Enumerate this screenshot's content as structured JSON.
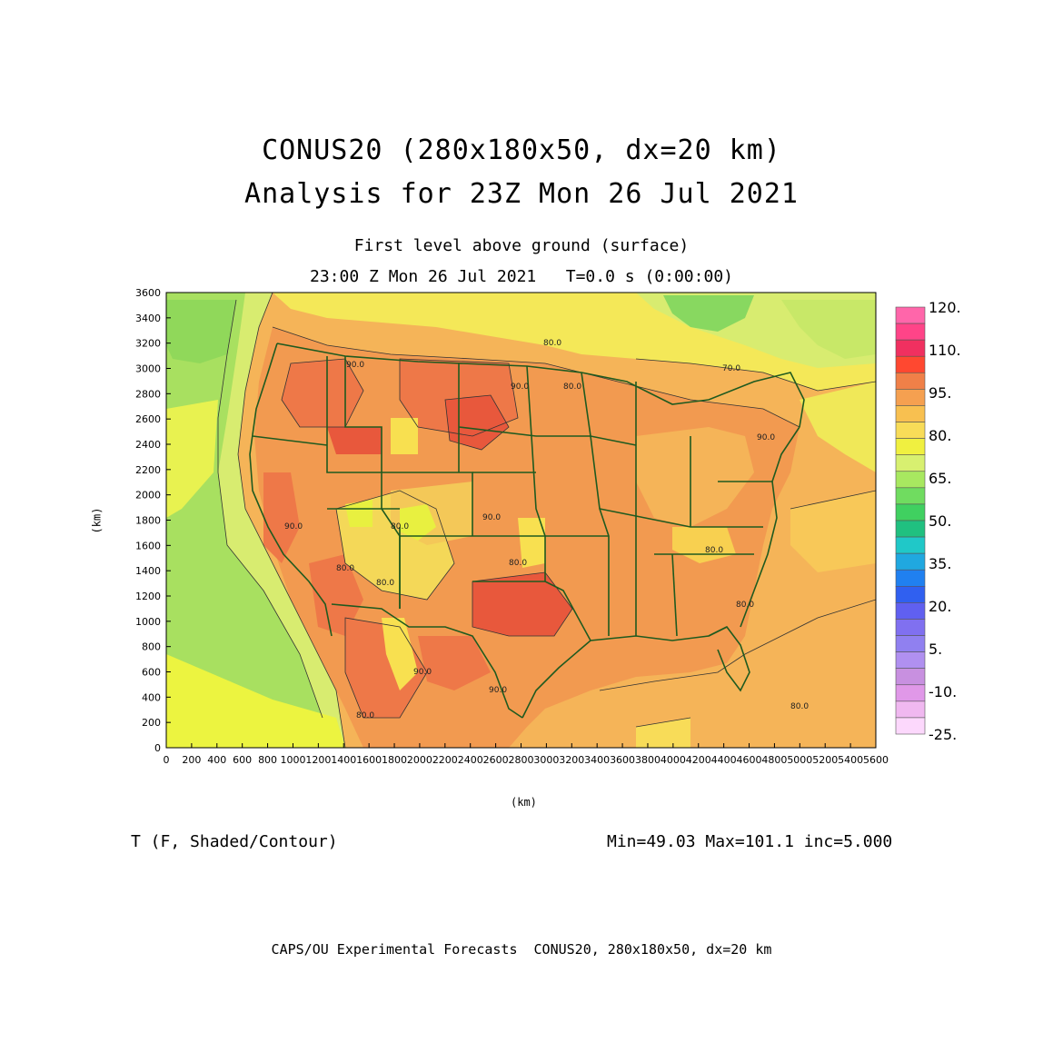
{
  "title": {
    "line1": "CONUS20 (280x180x50, dx=20 km)",
    "line2": "Analysis for 23Z Mon 26 Jul 2021"
  },
  "subtitle": {
    "line1": "First level above ground (surface)",
    "line2": "23:00 Z Mon 26 Jul 2021   T=0.0 s (0:00:00)"
  },
  "axes": {
    "xlabel": "(km)",
    "ylabel": "(km)",
    "xticks": [
      "0",
      "200",
      "400",
      "600",
      "800",
      "1000",
      "1200",
      "1400",
      "1600",
      "1800",
      "2000",
      "2200",
      "2400",
      "2600",
      "2800",
      "3000",
      "3200",
      "3400",
      "3600",
      "3800",
      "4000",
      "4200",
      "4400",
      "4600",
      "4800",
      "5000",
      "5200",
      "5400",
      "5600"
    ],
    "yticks": [
      "0",
      "200",
      "400",
      "600",
      "800",
      "1000",
      "1200",
      "1400",
      "1600",
      "1800",
      "2000",
      "2200",
      "2400",
      "2600",
      "2800",
      "3000",
      "3200",
      "3400",
      "3600"
    ],
    "xlim": [
      0,
      5600
    ],
    "ylim": [
      0,
      3600
    ]
  },
  "field": {
    "label": "T (F, Shaded/Contour)",
    "stats": "Min=49.03 Max=101.1 inc=5.000"
  },
  "colorbar": {
    "labels": [
      "120.",
      "110.",
      "95.",
      "80.",
      "65.",
      "50.",
      "35.",
      "20.",
      "5.",
      "-10.",
      "-25."
    ],
    "colors": [
      "#ff66aa",
      "#ff4488",
      "#f03060",
      "#ff4830",
      "#f08048",
      "#f5a050",
      "#f8c050",
      "#f8dc58",
      "#f0f040",
      "#d8f070",
      "#a8e860",
      "#70dc60",
      "#40d060",
      "#20c080",
      "#20c8c8",
      "#20a8e0",
      "#2080f0",
      "#3060f0",
      "#6060f0",
      "#8070f0",
      "#9080f0",
      "#b090f0",
      "#c890e0",
      "#e098e8",
      "#f0b8f0",
      "#fcd8fc"
    ]
  },
  "contour_labels": [
    "90.0",
    "90.0",
    "90.0",
    "80.0",
    "70.0",
    "90.0",
    "90.0",
    "80.0",
    "80.0",
    "80.0",
    "80.0",
    "80.0",
    "80.0",
    "90.0",
    "90.0",
    "80.0",
    "80.0",
    "80.0"
  ],
  "footer": "CAPS/OU Experimental Forecasts  CONUS20, 280x180x50, dx=20 km"
}
